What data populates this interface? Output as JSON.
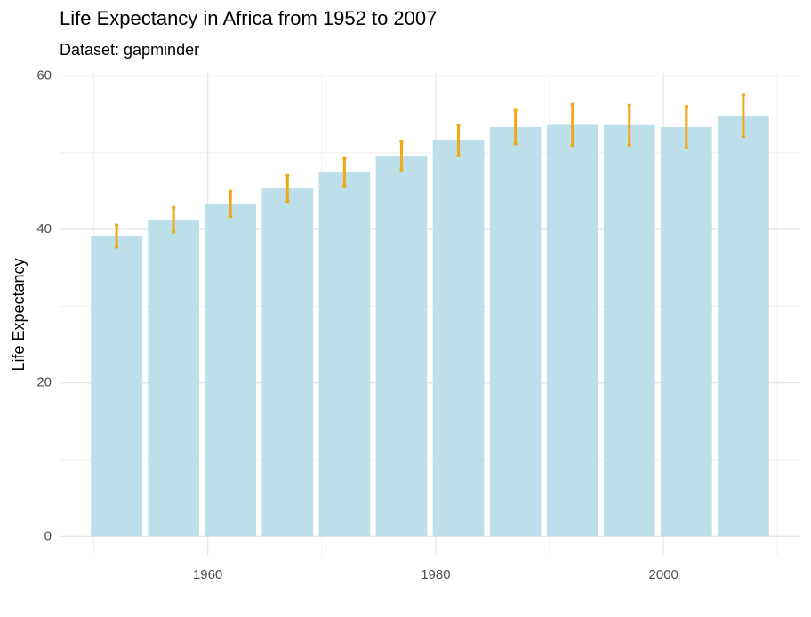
{
  "chart_data": {
    "type": "bar",
    "title": "Life Expectancy in Africa from 1952 to 2007",
    "subtitle": "Dataset: gapminder",
    "y_label": "Life Expectancy",
    "x": [
      1952,
      1957,
      1962,
      1967,
      1972,
      1977,
      1982,
      1987,
      1992,
      1997,
      2002,
      2007
    ],
    "values": [
      39.14,
      41.27,
      43.32,
      45.33,
      47.45,
      49.58,
      51.59,
      53.34,
      53.63,
      53.6,
      53.33,
      54.81
    ],
    "errors": [
      1.45,
      1.6,
      1.65,
      1.7,
      1.8,
      1.85,
      2.0,
      2.2,
      2.7,
      2.6,
      2.7,
      2.7
    ],
    "color": "#bddfe9",
    "error_color": "#f0a818",
    "xlim": [
      1947,
      2012
    ],
    "xticks": [
      1960,
      1980,
      2000
    ],
    "xminorticks": [
      1950,
      1970,
      1990,
      2010
    ],
    "ylim": [
      -2.4,
      60.4
    ],
    "yticks": [
      0,
      20,
      40,
      60
    ],
    "yminorticks": [
      10,
      30,
      50
    ],
    "grid": true
  }
}
